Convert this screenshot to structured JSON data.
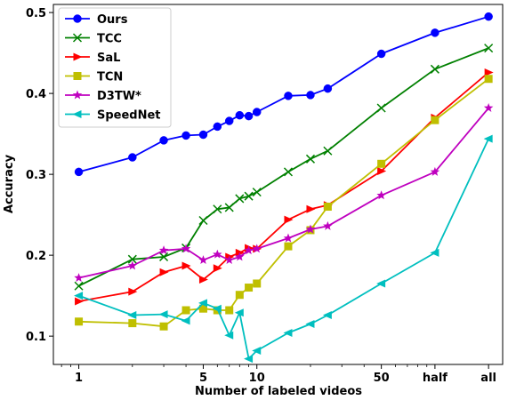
{
  "chart_data": {
    "type": "line",
    "xlabel": "Number of labeled videos",
    "ylabel": "Accuracy",
    "xscale": "log",
    "ylim": [
      0.065,
      0.51
    ],
    "x_ticks": [
      {
        "value": 1,
        "label": "1"
      },
      {
        "value": 5,
        "label": "5"
      },
      {
        "value": 10,
        "label": "10"
      },
      {
        "value": 50,
        "label": "50"
      },
      {
        "value": 100,
        "label": "half"
      },
      {
        "value": 200,
        "label": "all"
      }
    ],
    "y_ticks": [
      0.1,
      0.2,
      0.3,
      0.4,
      0.5
    ],
    "y_tick_labels": [
      "0.1",
      "0.2",
      "0.3",
      "0.4",
      "0.5"
    ],
    "grid": false,
    "legend_position": "top-left",
    "series": [
      {
        "name": "Ours",
        "color": "#0000ff",
        "marker": "circle",
        "x": [
          1,
          2,
          3,
          4,
          5,
          6,
          7,
          8,
          9,
          10,
          15,
          20,
          25,
          50,
          100,
          200
        ],
        "y": [
          0.303,
          0.321,
          0.342,
          0.348,
          0.349,
          0.359,
          0.366,
          0.373,
          0.372,
          0.377,
          0.397,
          0.398,
          0.406,
          0.449,
          0.475,
          0.495
        ]
      },
      {
        "name": "TCC",
        "color": "#008000",
        "marker": "x",
        "x": [
          1,
          2,
          3,
          4,
          5,
          6,
          7,
          8,
          9,
          10,
          15,
          20,
          25,
          50,
          100,
          200
        ],
        "y": [
          0.162,
          0.195,
          0.198,
          0.209,
          0.243,
          0.257,
          0.259,
          0.27,
          0.273,
          0.278,
          0.303,
          0.319,
          0.329,
          0.382,
          0.43,
          0.456
        ]
      },
      {
        "name": "SaL",
        "color": "#ff0000",
        "marker": "triangle-right",
        "x": [
          1,
          2,
          3,
          4,
          5,
          6,
          7,
          8,
          9,
          10,
          15,
          20,
          25,
          50,
          100,
          200
        ],
        "y": [
          0.143,
          0.155,
          0.179,
          0.187,
          0.17,
          0.184,
          0.198,
          0.203,
          0.209,
          0.208,
          0.244,
          0.257,
          0.262,
          0.304,
          0.37,
          0.426
        ]
      },
      {
        "name": "TCN",
        "color": "#bfbf00",
        "marker": "square",
        "x": [
          1,
          2,
          3,
          4,
          5,
          6,
          7,
          8,
          9,
          10,
          15,
          20,
          25,
          50,
          100,
          200
        ],
        "y": [
          0.118,
          0.116,
          0.112,
          0.132,
          0.134,
          0.132,
          0.132,
          0.151,
          0.16,
          0.165,
          0.211,
          0.231,
          0.26,
          0.313,
          0.367,
          0.418
        ]
      },
      {
        "name": "D3TW*",
        "color": "#bf00bf",
        "marker": "star",
        "x": [
          1,
          2,
          3,
          4,
          5,
          6,
          7,
          8,
          9,
          10,
          15,
          20,
          25,
          50,
          100,
          200
        ],
        "y": [
          0.172,
          0.187,
          0.206,
          0.208,
          0.194,
          0.201,
          0.194,
          0.198,
          0.206,
          0.208,
          0.221,
          0.232,
          0.236,
          0.274,
          0.303,
          0.382
        ]
      },
      {
        "name": "SpeedNet",
        "color": "#00bfbf",
        "marker": "triangle-left",
        "x": [
          1,
          2,
          3,
          4,
          5,
          6,
          7,
          8,
          9,
          10,
          15,
          20,
          25,
          50,
          100,
          200
        ],
        "y": [
          0.15,
          0.126,
          0.127,
          0.119,
          0.141,
          0.134,
          0.101,
          0.129,
          0.072,
          0.082,
          0.104,
          0.115,
          0.126,
          0.165,
          0.203,
          0.344
        ]
      }
    ]
  }
}
